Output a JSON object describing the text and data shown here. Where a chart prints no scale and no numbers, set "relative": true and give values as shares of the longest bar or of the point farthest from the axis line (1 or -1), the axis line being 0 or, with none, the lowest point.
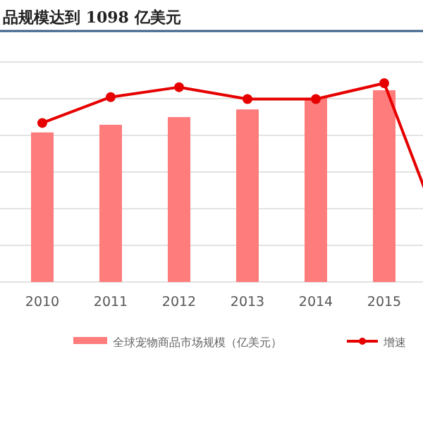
{
  "chart_data": {
    "type": "bar",
    "title": "品规模达到 1098 亿美元",
    "relative": true,
    "grid": true,
    "legend": "bottom",
    "categories": [
      "2010",
      "2011",
      "2012",
      "2013",
      "2014",
      "2015",
      null
    ],
    "series": [
      {
        "name": "全球宠物商品市场规模（亿美元）",
        "color": "#ff7c7c",
        "values": [
          0.78,
          0.82,
          0.86,
          0.9,
          0.96,
          1,
          null
        ]
      },
      {
        "name": "增速",
        "type": "line",
        "axis": "y2",
        "color": "#e60000",
        "marker": "circle",
        "values": [
          0.8,
          0.93,
          0.98,
          0.92,
          0.92,
          1,
          0.1
        ]
      }
    ]
  }
}
